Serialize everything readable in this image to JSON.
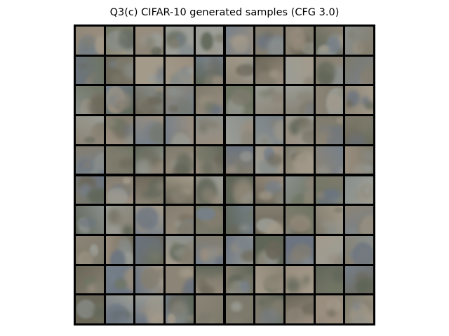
{
  "figure": {
    "title": "Q3(c) CIFAR-10 generated samples (CFG 3.0)"
  },
  "grid": {
    "rows": 10,
    "cols": 10
  },
  "palette": {
    "border": "#000000",
    "background": "#ffffff",
    "tile_tones": [
      "#7d7a6c",
      "#8a8f8c",
      "#6f7563",
      "#9a8e7f",
      "#6b7480",
      "#a39a8a",
      "#5f6658",
      "#8c8476",
      "#76808a",
      "#9b9d96",
      "#6a6658",
      "#847e70"
    ]
  }
}
